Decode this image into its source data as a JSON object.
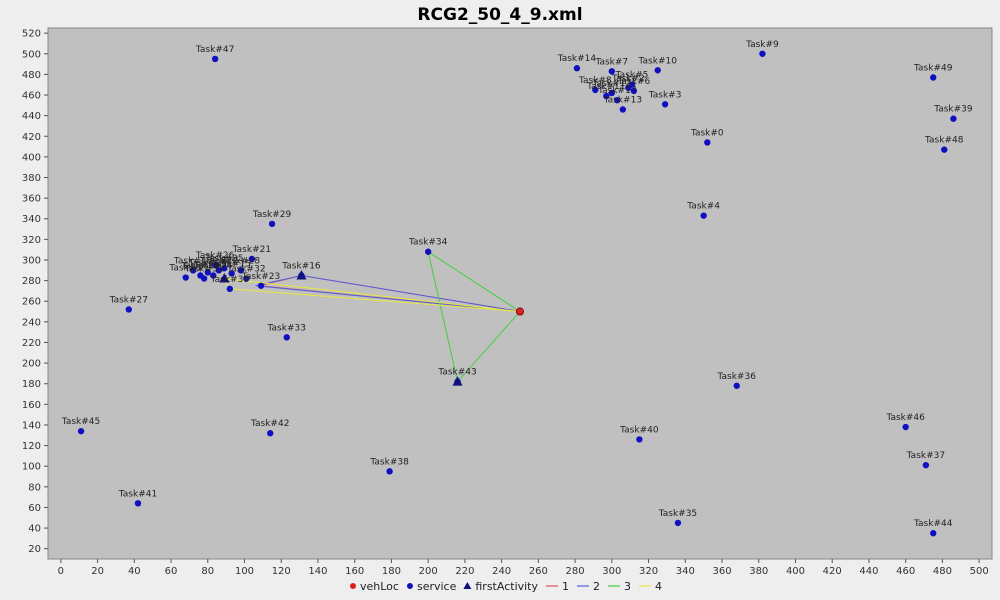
{
  "chart_data": {
    "type": "scatter",
    "title": "RCG2_50_4_9.xml",
    "xlim": [
      -7,
      507
    ],
    "ylim": [
      10,
      525
    ],
    "xticks": [
      0,
      20,
      40,
      60,
      80,
      100,
      120,
      140,
      160,
      180,
      200,
      220,
      240,
      260,
      280,
      300,
      320,
      340,
      360,
      380,
      400,
      420,
      440,
      460,
      480,
      500
    ],
    "yticks": [
      20,
      40,
      60,
      80,
      100,
      120,
      140,
      160,
      180,
      200,
      220,
      240,
      260,
      280,
      300,
      320,
      340,
      360,
      380,
      400,
      420,
      440,
      460,
      480,
      500,
      520
    ],
    "colors": {
      "plot_bg": "#c0c0c0",
      "vehLoc": "#e02020",
      "service": "#1010c0",
      "firstActivity": "#101080",
      "route1": "#e05050",
      "route2": "#5060e0",
      "route3": "#40d040",
      "route4": "#e8e840"
    },
    "legend": {
      "position": "bottom-center",
      "items": [
        {
          "label": "vehLoc",
          "kind": "dot",
          "color_key": "vehLoc"
        },
        {
          "label": "service",
          "kind": "dot",
          "color_key": "service"
        },
        {
          "label": "firstActivity",
          "kind": "triangle",
          "color_key": "firstActivity"
        },
        {
          "label": "1",
          "kind": "line",
          "color_key": "route1"
        },
        {
          "label": "2",
          "kind": "line",
          "color_key": "route2"
        },
        {
          "label": "3",
          "kind": "line",
          "color_key": "route3"
        },
        {
          "label": "4",
          "kind": "line",
          "color_key": "route4"
        }
      ]
    },
    "vehLoc": [
      {
        "x": 250,
        "y": 250
      }
    ],
    "firstActivity": [
      {
        "x": 131,
        "y": 285
      },
      {
        "x": 216,
        "y": 182
      },
      {
        "x": 89,
        "y": 282
      }
    ],
    "routes": [
      {
        "color_key": "route1",
        "points": [
          [
            250,
            250
          ],
          [
            131,
            285
          ],
          [
            108,
            275
          ],
          [
            250,
            250
          ]
        ]
      },
      {
        "color_key": "route2",
        "points": [
          [
            250,
            250
          ],
          [
            131,
            285
          ],
          [
            106,
            275
          ],
          [
            250,
            250
          ]
        ]
      },
      {
        "color_key": "route3",
        "points": [
          [
            250,
            250
          ],
          [
            200,
            308
          ],
          [
            216,
            182
          ],
          [
            250,
            250
          ]
        ]
      },
      {
        "color_key": "route4",
        "points": [
          [
            250,
            250
          ],
          [
            89,
            282
          ],
          [
            92,
            272
          ],
          [
            250,
            250
          ]
        ]
      }
    ],
    "tasks": [
      {
        "label": "Task#0",
        "x": 352,
        "y": 414
      },
      {
        "label": "Task#3",
        "x": 329,
        "y": 451
      },
      {
        "label": "Task#4",
        "x": 350,
        "y": 343
      },
      {
        "label": "Task#5",
        "x": 311,
        "y": 470
      },
      {
        "label": "Task#7",
        "x": 300,
        "y": 483
      },
      {
        "label": "Task#8",
        "x": 291,
        "y": 465
      },
      {
        "label": "Task#9",
        "x": 382,
        "y": 500
      },
      {
        "label": "Task#10",
        "x": 325,
        "y": 484
      },
      {
        "label": "Task#11",
        "x": 297,
        "y": 459
      },
      {
        "label": "Task#12",
        "x": 300,
        "y": 462
      },
      {
        "label": "Task#13",
        "x": 306,
        "y": 446
      },
      {
        "label": "Task#14",
        "x": 281,
        "y": 486
      },
      {
        "label": "Task#15",
        "x": 93,
        "y": 287
      },
      {
        "label": "Task#16",
        "x": 131,
        "y": 285
      },
      {
        "label": "Task#17",
        "x": 303,
        "y": 455
      },
      {
        "label": "Task#18",
        "x": 72,
        "y": 290
      },
      {
        "label": "Task#19",
        "x": 76,
        "y": 285
      },
      {
        "label": "Task#20",
        "x": 80,
        "y": 288
      },
      {
        "label": "Task#21",
        "x": 104,
        "y": 301
      },
      {
        "label": "Task#22",
        "x": 86,
        "y": 290
      },
      {
        "label": "Task#23",
        "x": 109,
        "y": 275
      },
      {
        "label": "Task#24",
        "x": 83,
        "y": 285
      },
      {
        "label": "Task#25",
        "x": 89,
        "y": 292
      },
      {
        "label": "Task#26",
        "x": 84,
        "y": 295
      },
      {
        "label": "Task#27",
        "x": 37,
        "y": 252
      },
      {
        "label": "Task#28",
        "x": 98,
        "y": 290
      },
      {
        "label": "Task#29",
        "x": 115,
        "y": 335
      },
      {
        "label": "Task#30",
        "x": 92,
        "y": 272
      },
      {
        "label": "Task#31",
        "x": 78,
        "y": 282
      },
      {
        "label": "Task#32",
        "x": 101,
        "y": 282
      },
      {
        "label": "Task#33",
        "x": 123,
        "y": 225
      },
      {
        "label": "Task#34",
        "x": 200,
        "y": 308
      },
      {
        "label": "Task#35",
        "x": 336,
        "y": 45
      },
      {
        "label": "Task#36",
        "x": 368,
        "y": 178
      },
      {
        "label": "Task#37",
        "x": 471,
        "y": 101
      },
      {
        "label": "Task#38",
        "x": 179,
        "y": 95
      },
      {
        "label": "Task#39",
        "x": 486,
        "y": 437
      },
      {
        "label": "Task#40",
        "x": 315,
        "y": 126
      },
      {
        "label": "Task#41",
        "x": 42,
        "y": 64
      },
      {
        "label": "Task#42",
        "x": 114,
        "y": 132
      },
      {
        "label": "Task#43",
        "x": 216,
        "y": 182
      },
      {
        "label": "Task#44",
        "x": 475,
        "y": 35
      },
      {
        "label": "Task#45",
        "x": 11,
        "y": 134
      },
      {
        "label": "Task#46",
        "x": 460,
        "y": 138
      },
      {
        "label": "Task#47",
        "x": 84,
        "y": 495
      },
      {
        "label": "Task#48",
        "x": 481,
        "y": 407
      },
      {
        "label": "Task#49",
        "x": 475,
        "y": 477
      },
      {
        "label": "Task#1",
        "x": 68,
        "y": 283
      },
      {
        "label": "Task#2",
        "x": 309,
        "y": 467
      },
      {
        "label": "Task#6",
        "x": 312,
        "y": 464
      }
    ]
  }
}
